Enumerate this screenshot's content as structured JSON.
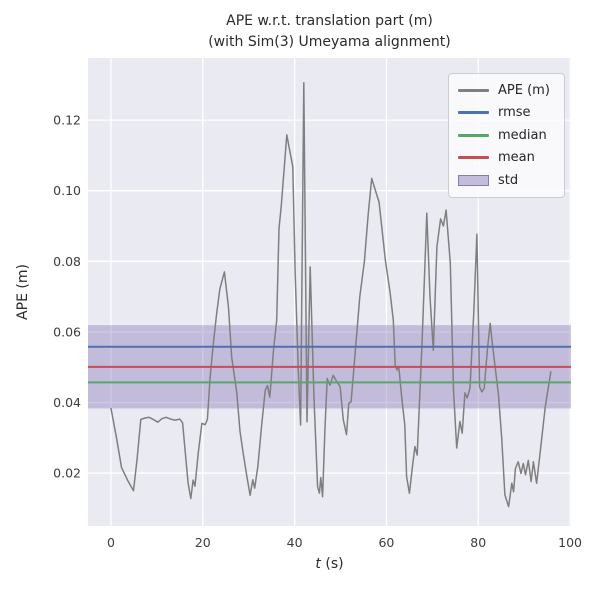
{
  "figure": {
    "title_line1": "APE w.r.t. translation part (m)",
    "title_line2": "(with Sim(3) Umeyama alignment)"
  },
  "axes": {
    "ylabel": "APE (m)",
    "xlabel_var": "t",
    "xlabel_unit": " (s)"
  },
  "legend": {
    "items": [
      {
        "label": "APE (m)",
        "type": "line",
        "color": "#7f7f7f"
      },
      {
        "label": "rmse",
        "type": "line",
        "color": "#4C72B0"
      },
      {
        "label": "median",
        "type": "line",
        "color": "#55A868"
      },
      {
        "label": "mean",
        "type": "line",
        "color": "#C44E52"
      },
      {
        "label": "std",
        "type": "patch",
        "color": "rgba(129,114,178,0.45)"
      }
    ]
  },
  "colors": {
    "axes_bg": "#EAEAF2",
    "grid": "#FFFFFF",
    "ape_line": "#7f7f7f",
    "rmse_line": "#4C72B0",
    "median_line": "#55A868",
    "mean_line": "#C44E52",
    "std_band": "rgba(129,114,178,0.38)",
    "tick_text": "#3d3d3d"
  },
  "chart_data": {
    "type": "line",
    "title": "APE w.r.t. translation part (m)\n(with Sim(3) Umeyama alignment)",
    "xlabel": "t (s)",
    "ylabel": "APE (m)",
    "xlim": [
      -5.0,
      100.2
    ],
    "ylim": [
      0.005,
      0.1376
    ],
    "xticks": [
      0,
      20,
      40,
      60,
      80,
      100
    ],
    "yticks": [
      0.02,
      0.04,
      0.06,
      0.08,
      0.1,
      0.12
    ],
    "grid": true,
    "legend_position": "upper right",
    "stats": {
      "rmse": 0.0558,
      "mean": 0.0501,
      "median": 0.0457,
      "std": 0.0118
    },
    "std_band": {
      "low": 0.0383,
      "high": 0.0619
    },
    "series": [
      {
        "name": "APE (m)",
        "points": [
          [
            0.0,
            0.0383
          ],
          [
            1.2,
            0.03
          ],
          [
            2.3,
            0.0216
          ],
          [
            3.6,
            0.018
          ],
          [
            4.9,
            0.015
          ],
          [
            5.7,
            0.024
          ],
          [
            6.5,
            0.0352
          ],
          [
            7.4,
            0.0356
          ],
          [
            8.3,
            0.0358
          ],
          [
            9.2,
            0.0352
          ],
          [
            10.2,
            0.0344
          ],
          [
            11.1,
            0.0354
          ],
          [
            12.0,
            0.0358
          ],
          [
            13.0,
            0.0353
          ],
          [
            14.0,
            0.035
          ],
          [
            15.0,
            0.0353
          ],
          [
            15.6,
            0.0342
          ],
          [
            16.2,
            0.0258
          ],
          [
            16.8,
            0.0171
          ],
          [
            17.4,
            0.0128
          ],
          [
            17.9,
            0.018
          ],
          [
            18.3,
            0.0163
          ],
          [
            19.0,
            0.0256
          ],
          [
            19.8,
            0.0341
          ],
          [
            20.5,
            0.0337
          ],
          [
            21.0,
            0.0352
          ],
          [
            21.6,
            0.0471
          ],
          [
            22.3,
            0.0566
          ],
          [
            23.0,
            0.0651
          ],
          [
            23.7,
            0.0721
          ],
          [
            24.7,
            0.077
          ],
          [
            25.6,
            0.0669
          ],
          [
            26.3,
            0.0528
          ],
          [
            27.4,
            0.0427
          ],
          [
            28.1,
            0.0318
          ],
          [
            28.8,
            0.0256
          ],
          [
            29.6,
            0.019
          ],
          [
            30.3,
            0.0137
          ],
          [
            30.9,
            0.0181
          ],
          [
            31.3,
            0.0157
          ],
          [
            32.0,
            0.022
          ],
          [
            32.8,
            0.0331
          ],
          [
            33.6,
            0.0434
          ],
          [
            34.1,
            0.0448
          ],
          [
            34.6,
            0.0415
          ],
          [
            35.4,
            0.0548
          ],
          [
            36.1,
            0.0633
          ],
          [
            36.6,
            0.0893
          ],
          [
            37.1,
            0.0958
          ],
          [
            38.3,
            0.1158
          ],
          [
            39.2,
            0.1096
          ],
          [
            39.6,
            0.1068
          ],
          [
            40.1,
            0.0774
          ],
          [
            40.8,
            0.049
          ],
          [
            41.3,
            0.0336
          ],
          [
            42.0,
            0.1306
          ],
          [
            42.7,
            0.0345
          ],
          [
            43.4,
            0.0784
          ],
          [
            44.2,
            0.042
          ],
          [
            45.0,
            0.0161
          ],
          [
            45.4,
            0.0143
          ],
          [
            45.7,
            0.0187
          ],
          [
            46.1,
            0.0133
          ],
          [
            46.6,
            0.0322
          ],
          [
            47.1,
            0.0468
          ],
          [
            47.7,
            0.0449
          ],
          [
            48.4,
            0.0477
          ],
          [
            49.2,
            0.0459
          ],
          [
            49.9,
            0.0445
          ],
          [
            50.6,
            0.0351
          ],
          [
            51.3,
            0.0309
          ],
          [
            51.8,
            0.0398
          ],
          [
            52.3,
            0.0402
          ],
          [
            53.2,
            0.0542
          ],
          [
            54.2,
            0.07
          ],
          [
            55.2,
            0.08
          ],
          [
            56.0,
            0.093
          ],
          [
            56.8,
            0.1035
          ],
          [
            58.4,
            0.0967
          ],
          [
            59.8,
            0.08
          ],
          [
            60.8,
            0.0712
          ],
          [
            61.5,
            0.0633
          ],
          [
            61.9,
            0.0505
          ],
          [
            62.3,
            0.0492
          ],
          [
            62.7,
            0.0502
          ],
          [
            63.3,
            0.0417
          ],
          [
            64.0,
            0.0336
          ],
          [
            64.4,
            0.019
          ],
          [
            65.0,
            0.0143
          ],
          [
            65.6,
            0.021
          ],
          [
            66.2,
            0.0275
          ],
          [
            66.7,
            0.0251
          ],
          [
            67.8,
            0.058
          ],
          [
            68.8,
            0.0936
          ],
          [
            69.5,
            0.07
          ],
          [
            70.2,
            0.0548
          ],
          [
            71.0,
            0.0841
          ],
          [
            71.8,
            0.092
          ],
          [
            72.4,
            0.09
          ],
          [
            73.0,
            0.0945
          ],
          [
            73.9,
            0.0795
          ],
          [
            74.6,
            0.0436
          ],
          [
            75.3,
            0.0271
          ],
          [
            76.0,
            0.0346
          ],
          [
            76.5,
            0.0313
          ],
          [
            77.1,
            0.0427
          ],
          [
            77.6,
            0.0413
          ],
          [
            78.2,
            0.0441
          ],
          [
            79.0,
            0.065
          ],
          [
            79.7,
            0.0877
          ],
          [
            80.3,
            0.0444
          ],
          [
            80.8,
            0.043
          ],
          [
            81.3,
            0.044
          ],
          [
            82.0,
            0.055
          ],
          [
            82.6,
            0.0624
          ],
          [
            83.1,
            0.0563
          ],
          [
            84.4,
            0.0421
          ],
          [
            85.1,
            0.0299
          ],
          [
            85.8,
            0.0138
          ],
          [
            86.6,
            0.0105
          ],
          [
            87.3,
            0.0171
          ],
          [
            87.7,
            0.0147
          ],
          [
            88.1,
            0.0213
          ],
          [
            88.7,
            0.0232
          ],
          [
            89.3,
            0.0199
          ],
          [
            89.8,
            0.0227
          ],
          [
            90.3,
            0.0195
          ],
          [
            90.9,
            0.0236
          ],
          [
            91.5,
            0.0176
          ],
          [
            92.0,
            0.0232
          ],
          [
            92.7,
            0.0171
          ],
          [
            93.5,
            0.026
          ],
          [
            94.6,
            0.0389
          ],
          [
            95.8,
            0.0487
          ]
        ]
      }
    ]
  }
}
